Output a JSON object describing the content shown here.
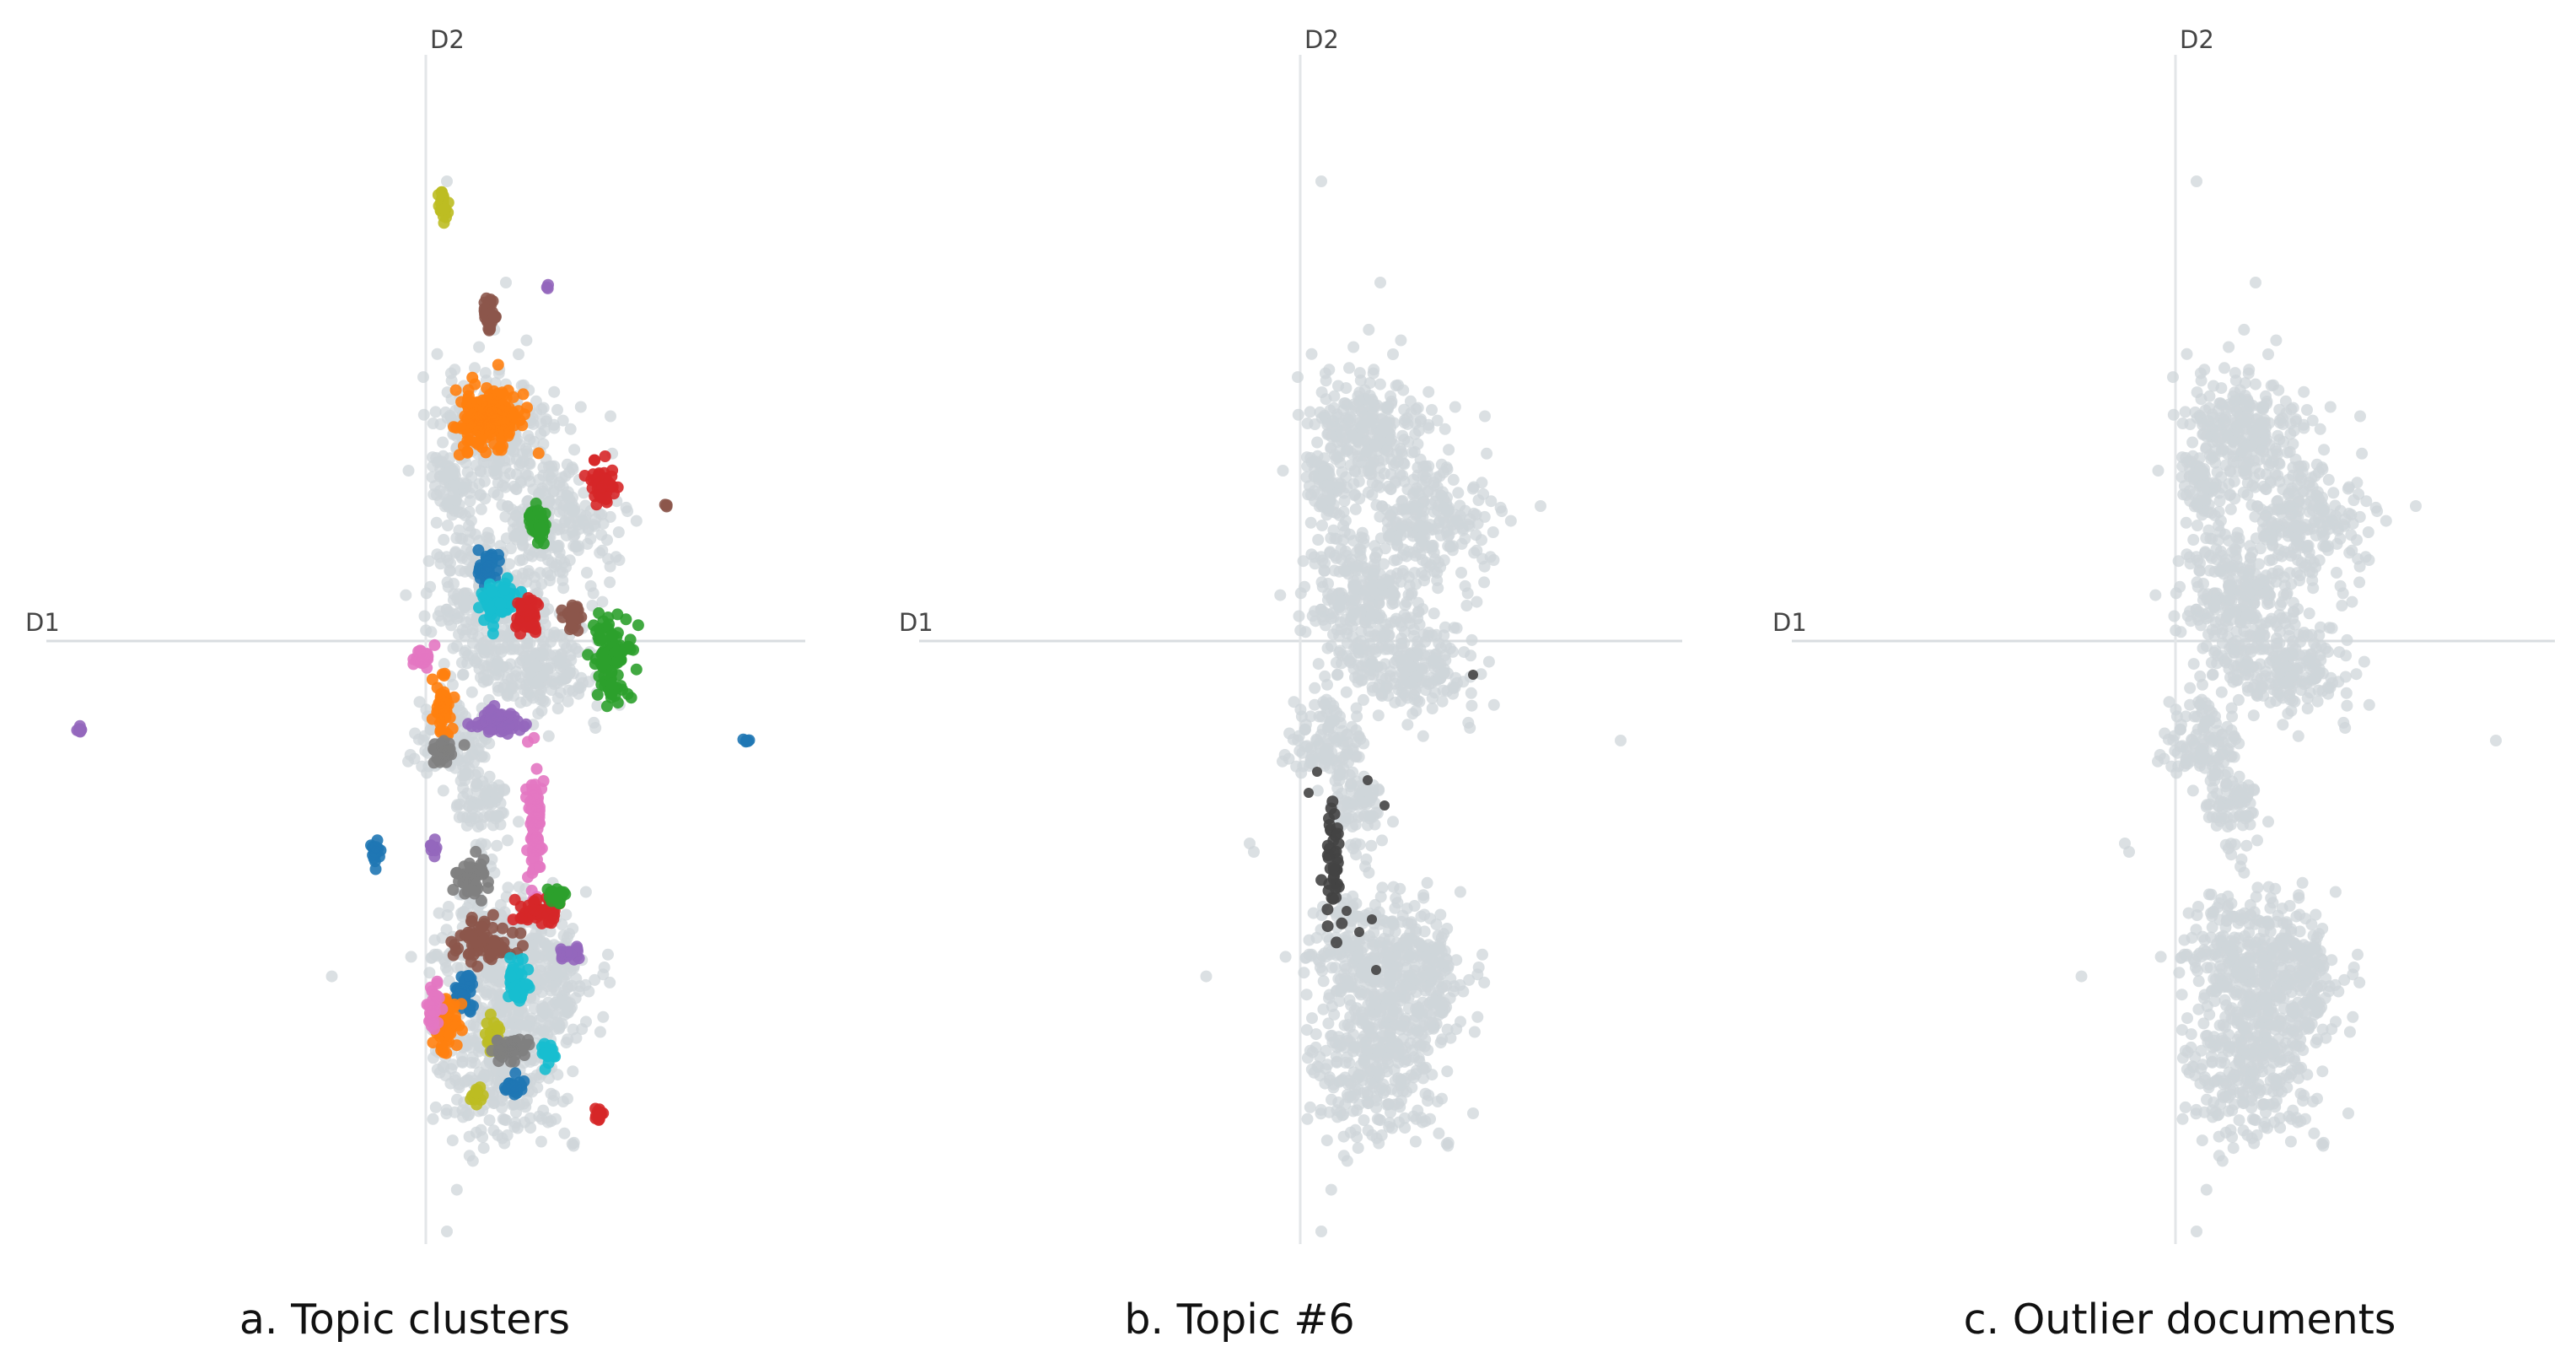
{
  "chart_data": [
    {
      "type": "scatter",
      "caption": "a. Topic clusters",
      "xlabel": "D1",
      "ylabel": "D2",
      "style": "topic-colored",
      "colors": [
        "#1f77b4",
        "#ff7f0e",
        "#2ca02c",
        "#d62728",
        "#9467bd",
        "#8c564b",
        "#e377c2",
        "#7f7f7f",
        "#bcbd22",
        "#17becf"
      ],
      "background_color": "#cfd5da"
    },
    {
      "type": "scatter",
      "caption": "b. Topic #6",
      "xlabel": "D1",
      "ylabel": "D2",
      "style": "highlight-topic",
      "highlight_color": "#444444",
      "background_color": "#cfd5da"
    },
    {
      "type": "scatter",
      "caption": "c. Outlier documents",
      "xlabel": "D1",
      "ylabel": "D2",
      "style": "all-gray",
      "background_color": "#cfd5da"
    }
  ]
}
